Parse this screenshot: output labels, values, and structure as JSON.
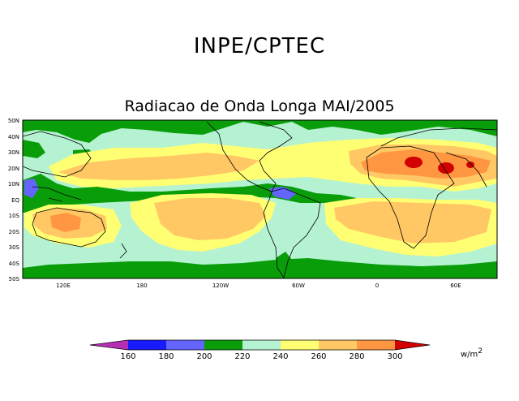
{
  "header": {
    "title": "INPE/CPTEC",
    "subtitle": "Radiacao de Onda Longa MAI/2005"
  },
  "map": {
    "lat_labels": [
      "50N",
      "40N",
      "30N",
      "20N",
      "10N",
      "EQ",
      "10S",
      "20S",
      "30S",
      "40S",
      "50S"
    ],
    "lon_labels": [
      "120E",
      "180",
      "120W",
      "60W",
      "0",
      "60E"
    ]
  },
  "colorbar": {
    "levels": [
      "160",
      "180",
      "200",
      "220",
      "240",
      "260",
      "280",
      "300"
    ],
    "colors": [
      "#b52fb5",
      "#1a1aff",
      "#6464ff",
      "#0a9d0a",
      "#b4f2d2",
      "#ffff73",
      "#ffc864",
      "#ff9642",
      "#d20000"
    ],
    "units_base": "w/m",
    "units_exp": "2"
  }
}
